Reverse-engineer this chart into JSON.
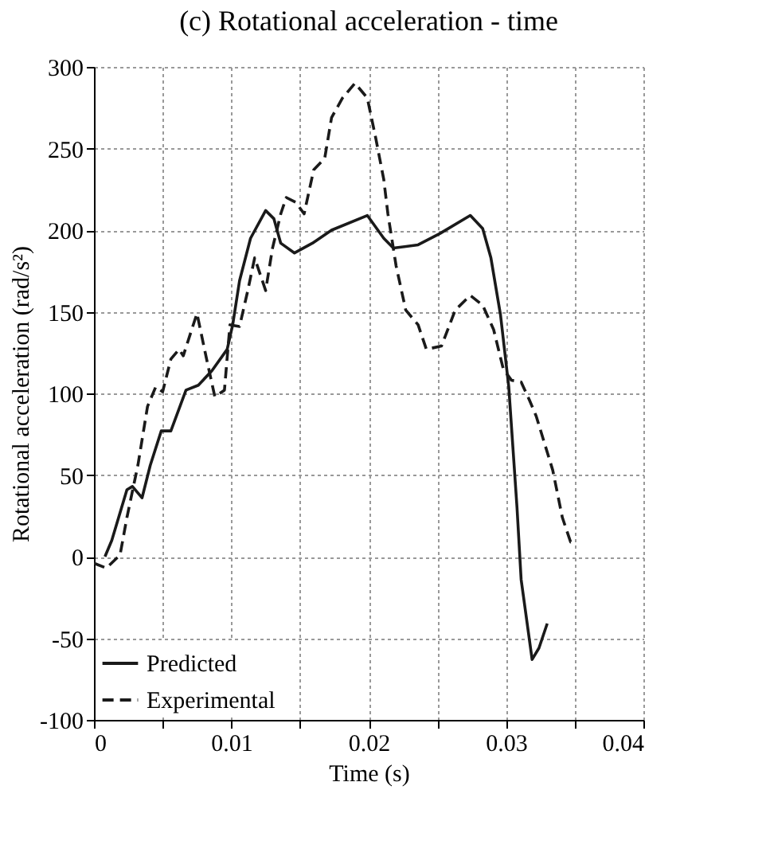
{
  "chart_data": {
    "type": "line",
    "title": "(c) Rotational acceleration - time",
    "xlabel": "Time (s)",
    "ylabel": "Rotational acceleration (rad/s²)",
    "xlim": [
      0,
      0.04
    ],
    "ylim": [
      -100,
      300
    ],
    "xticks": [
      0,
      {
        "value": 0.005,
        "label": null
      },
      0.01,
      {
        "value": 0.015,
        "label": null
      },
      0.02,
      {
        "value": 0.025,
        "label": null
      },
      0.03,
      {
        "value": 0.035,
        "label": null
      },
      0.04
    ],
    "yticks": [
      -100,
      -50,
      0,
      50,
      100,
      150,
      200,
      250,
      300
    ],
    "grid": true,
    "legend": "bottom left",
    "marker": "none",
    "series": [
      {
        "name": "Predicted",
        "color": "#1a1a1a",
        "line_style": "solid",
        "x": [
          0.0008,
          0.0013,
          0.0024,
          0.0028,
          0.0035,
          0.0041,
          0.0049,
          0.0056,
          0.0067,
          0.0076,
          0.0086,
          0.0097,
          0.0101,
          0.0106,
          0.0114,
          0.0125,
          0.0131,
          0.0136,
          0.0146,
          0.0159,
          0.0173,
          0.0199,
          0.0211,
          0.0218,
          0.0236,
          0.0252,
          0.0274,
          0.0283,
          0.0289,
          0.0296,
          0.0302,
          0.0308,
          0.0311,
          0.0319,
          0.0324,
          0.033
        ],
        "values": [
          0,
          10,
          41,
          43,
          36,
          56,
          77,
          77,
          102,
          105,
          114,
          127,
          142,
          169,
          195,
          212,
          207,
          192,
          186,
          192,
          200,
          209,
          195,
          189,
          191,
          198,
          209,
          201,
          183,
          148,
          104,
          30,
          -14,
          -63,
          -56,
          -41
        ]
      },
      {
        "name": "Experimental",
        "color": "#1a1a1a",
        "line_style": "dashed",
        "x": [
          0,
          0.0009,
          0.0019,
          0.0024,
          0.0032,
          0.0039,
          0.0045,
          0.005,
          0.0056,
          0.0062,
          0.0065,
          0.0075,
          0.0082,
          0.0088,
          0.0095,
          0.0099,
          0.0106,
          0.0112,
          0.0117,
          0.0125,
          0.013,
          0.0136,
          0.014,
          0.0147,
          0.0153,
          0.016,
          0.0168,
          0.0173,
          0.0181,
          0.019,
          0.0199,
          0.0205,
          0.0211,
          0.0214,
          0.022,
          0.0227,
          0.0236,
          0.0242,
          0.0253,
          0.0263,
          0.0274,
          0.0283,
          0.0291,
          0.0298,
          0.0304,
          0.0311,
          0.0317,
          0.0322,
          0.0334,
          0.0341,
          0.0347,
          0.035
        ],
        "values": [
          -4,
          -7,
          1,
          24,
          56,
          92,
          104,
          101,
          121,
          127,
          123,
          149,
          121,
          98,
          102,
          142,
          141,
          163,
          183,
          163,
          189,
          210,
          220,
          217,
          210,
          237,
          244,
          269,
          281,
          290,
          281,
          257,
          231,
          210,
          178,
          151,
          142,
          127,
          129,
          151,
          160,
          154,
          139,
          115,
          108,
          107,
          96,
          86,
          53,
          24,
          9,
          10
        ]
      }
    ]
  }
}
